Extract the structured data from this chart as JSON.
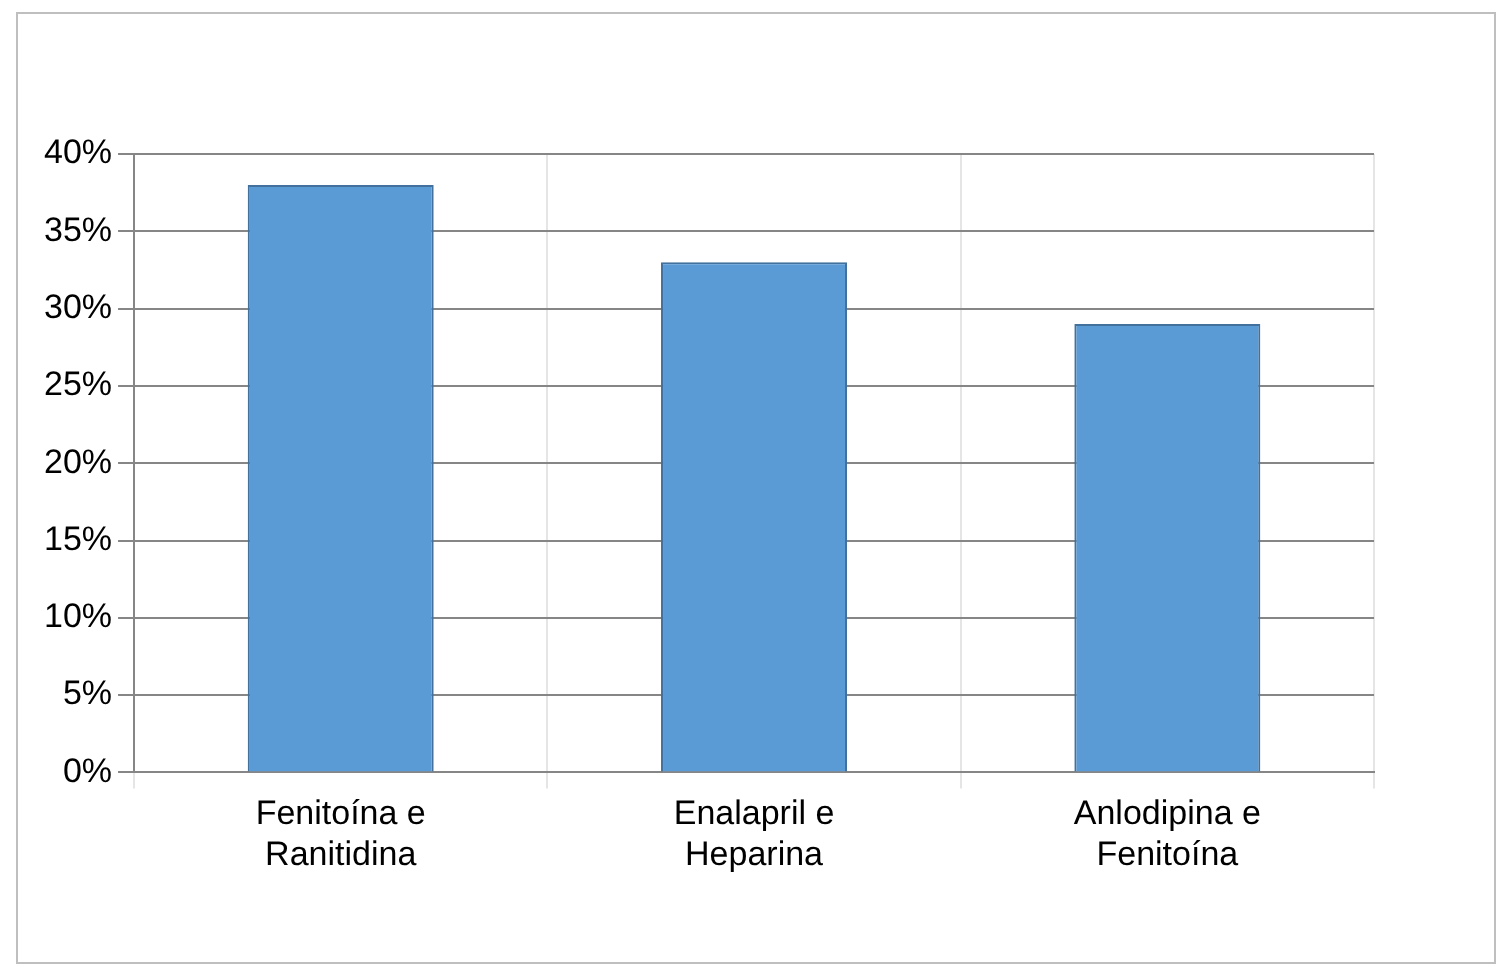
{
  "chart_data": {
    "type": "bar",
    "categories": [
      [
        "Fenitoína e",
        "Ranitidina"
      ],
      [
        "Enalapril e",
        "Heparina"
      ],
      [
        "Anlodipina e",
        "Fenitoína"
      ]
    ],
    "values": [
      38,
      33,
      29
    ],
    "color": "#5b9bd5",
    "ylim": [
      0,
      40
    ],
    "yticks": [
      {
        "value": 0,
        "label": "0%"
      },
      {
        "value": 5,
        "label": "5%"
      },
      {
        "value": 10,
        "label": "10%"
      },
      {
        "value": 15,
        "label": "15%"
      },
      {
        "value": 20,
        "label": "20%"
      },
      {
        "value": 25,
        "label": "25%"
      },
      {
        "value": 30,
        "label": "30%"
      },
      {
        "value": 35,
        "label": "35%"
      },
      {
        "value": 40,
        "label": "40%"
      }
    ],
    "grid": true,
    "legend": false
  }
}
